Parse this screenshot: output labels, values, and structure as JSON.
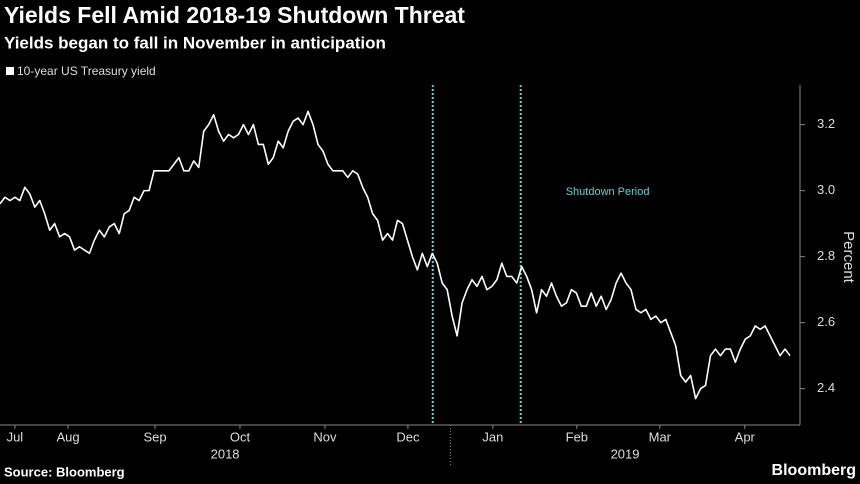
{
  "chart_data": {
    "type": "line",
    "title": "Yields Fell Amid 2018-19 Shutdown Threat",
    "subtitle": "Yields began to fall in November in anticipation",
    "source": "Source: Bloomberg",
    "brand": "Bloomberg",
    "series": [
      {
        "name": "10-year US Treasury yield",
        "color": "#ffffff",
        "values": [
          2.96,
          2.98,
          2.97,
          2.98,
          2.97,
          3.01,
          2.99,
          2.95,
          2.97,
          2.93,
          2.88,
          2.9,
          2.86,
          2.87,
          2.86,
          2.82,
          2.83,
          2.82,
          2.81,
          2.85,
          2.88,
          2.86,
          2.89,
          2.9,
          2.87,
          2.93,
          2.94,
          2.98,
          2.97,
          3.0,
          3.0,
          3.06,
          3.06,
          3.06,
          3.06,
          3.08,
          3.1,
          3.06,
          3.06,
          3.09,
          3.07,
          3.18,
          3.2,
          3.23,
          3.18,
          3.15,
          3.17,
          3.16,
          3.17,
          3.2,
          3.17,
          3.2,
          3.14,
          3.14,
          3.08,
          3.1,
          3.15,
          3.13,
          3.18,
          3.21,
          3.22,
          3.2,
          3.24,
          3.2,
          3.14,
          3.12,
          3.08,
          3.06,
          3.06,
          3.06,
          3.04,
          3.06,
          3.05,
          3.01,
          2.98,
          2.93,
          2.91,
          2.85,
          2.87,
          2.85,
          2.91,
          2.9,
          2.85,
          2.8,
          2.76,
          2.81,
          2.77,
          2.81,
          2.78,
          2.72,
          2.7,
          2.62,
          2.56,
          2.66,
          2.7,
          2.73,
          2.71,
          2.74,
          2.7,
          2.71,
          2.73,
          2.78,
          2.74,
          2.74,
          2.72,
          2.77,
          2.74,
          2.7,
          2.63,
          2.7,
          2.68,
          2.72,
          2.68,
          2.65,
          2.66,
          2.7,
          2.69,
          2.65,
          2.65,
          2.69,
          2.65,
          2.68,
          2.64,
          2.67,
          2.72,
          2.75,
          2.72,
          2.7,
          2.64,
          2.63,
          2.64,
          2.61,
          2.62,
          2.6,
          2.61,
          2.57,
          2.53,
          2.44,
          2.42,
          2.44,
          2.37,
          2.4,
          2.41,
          2.5,
          2.52,
          2.5,
          2.52,
          2.52,
          2.48,
          2.52,
          2.55,
          2.56,
          2.59,
          2.58,
          2.59,
          2.56,
          2.53,
          2.5,
          2.52,
          2.5
        ]
      }
    ],
    "xlim": [
      0,
      159
    ],
    "xticks": [
      {
        "value": 3,
        "label": "Jul"
      },
      {
        "value": 13.7,
        "label": "Aug"
      },
      {
        "value": 31.2,
        "label": "Sep"
      },
      {
        "value": 48.3,
        "label": "Oct"
      },
      {
        "value": 65.4,
        "label": "Nov"
      },
      {
        "value": 82.1,
        "label": "Dec"
      },
      {
        "value": 99.2,
        "label": "Jan"
      },
      {
        "value": 116.1,
        "label": "Feb"
      },
      {
        "value": 132.8,
        "label": "Mar"
      },
      {
        "value": 149.9,
        "label": "Apr"
      }
    ],
    "year_labels": [
      {
        "value": 45.3,
        "label": "2018"
      },
      {
        "value": 125.8,
        "label": "2019"
      }
    ],
    "ylim": [
      2.29,
      3.32
    ],
    "yticks": [
      2.4,
      2.6,
      {
        "value": 2.8,
        "label": "2.8"
      },
      {
        "value": 3,
        "label": "3.0"
      },
      3.2
    ],
    "y_label": "Percent",
    "annotation": {
      "text": "Shutdown Period",
      "start": 87.1,
      "end": 104.8,
      "color": "#5fd3d8"
    }
  }
}
